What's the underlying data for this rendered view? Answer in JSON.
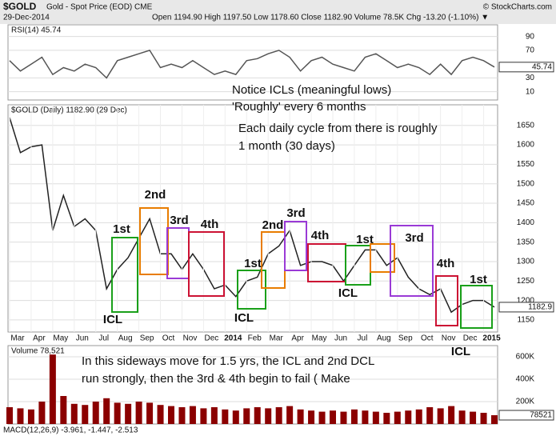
{
  "header": {
    "symbol": "$GOLD",
    "name": "Gold - Spot Price (EOD) CME",
    "source": "© StockCharts.com",
    "date": "29-Dec-2014",
    "stats": "Open 1194.90 High 1197.50 Low 1178.60 Close 1182.90 Volume 78.5K Chg -13.20 (-1.10%) ▼"
  },
  "chart_data": [
    {
      "type": "line",
      "title": "RSI(14) 45.74",
      "color": "#555555",
      "ylim": [
        -2,
        107
      ],
      "yticks": [
        10,
        30,
        70,
        90
      ],
      "grid": true,
      "values": [
        55,
        40,
        50,
        60,
        35,
        45,
        40,
        50,
        45,
        30,
        55,
        60,
        65,
        70,
        45,
        50,
        45,
        55,
        45,
        35,
        40,
        35,
        55,
        58,
        65,
        70,
        60,
        40,
        55,
        60,
        50,
        45,
        40,
        60,
        65,
        55,
        45,
        50,
        45,
        35,
        50,
        35,
        55,
        60,
        55,
        45.74
      ]
    },
    {
      "type": "line",
      "title": "$GOLD (Daily) 1182.90 (29 Dec)",
      "color": "#222222",
      "ylim": [
        1119,
        1703
      ],
      "grid": true,
      "yticks": [
        1150,
        1200,
        1250,
        1300,
        1350,
        1400,
        1450,
        1500,
        1550,
        1600,
        1650
      ],
      "categories": [
        "Mar",
        null,
        "Apr",
        null,
        "May",
        null,
        "Jun",
        null,
        "Jul",
        null,
        "Aug",
        null,
        "Sep",
        null,
        "Oct",
        null,
        "Nov",
        null,
        "Dec",
        null,
        "2014",
        null,
        "Feb",
        null,
        "Mar",
        null,
        "Apr",
        null,
        "May",
        null,
        "Jun",
        null,
        "Jul",
        null,
        "Aug",
        null,
        "Sep",
        null,
        "Oct",
        null,
        "Nov",
        null,
        "Dec",
        null,
        "2015",
        null
      ],
      "values": [
        1670,
        1580,
        1595,
        1600,
        1380,
        1470,
        1390,
        1410,
        1380,
        1230,
        1280,
        1310,
        1360,
        1410,
        1320,
        1320,
        1280,
        1320,
        1280,
        1230,
        1240,
        1210,
        1250,
        1260,
        1320,
        1340,
        1380,
        1290,
        1300,
        1300,
        1290,
        1250,
        1290,
        1330,
        1330,
        1290,
        1310,
        1260,
        1230,
        1215,
        1230,
        1170,
        1190,
        1200,
        1200,
        1182.9
      ]
    },
    {
      "type": "bar",
      "title": "Volume 78,521",
      "color": "#8b0000",
      "ylim": [
        0,
        700000
      ],
      "grid": true,
      "yticks": [
        {
          "value": 200000,
          "label": "200K"
        },
        {
          "value": 400000,
          "label": "400K"
        },
        {
          "value": 600000,
          "label": "600K"
        }
      ],
      "values": [
        150000,
        140000,
        130000,
        200000,
        620000,
        250000,
        180000,
        170000,
        200000,
        230000,
        190000,
        180000,
        200000,
        190000,
        170000,
        160000,
        150000,
        160000,
        140000,
        150000,
        130000,
        120000,
        140000,
        150000,
        140000,
        150000,
        160000,
        130000,
        120000,
        110000,
        120000,
        110000,
        130000,
        120000,
        110000,
        100000,
        110000,
        120000,
        130000,
        150000,
        140000,
        160000,
        120000,
        110000,
        100000,
        78521
      ]
    }
  ],
  "macd_label": "MACD(12,26,9) -3.961, -1.447, -2.513",
  "annotations": [
    {
      "text": "Notice ICLs  (meaningful lows)",
      "color": "#1a3fd6"
    },
    {
      "text": "'Roughly'  every 6 months",
      "color": "#1a3fd6"
    },
    {
      "text": "Each daily cycle from there is roughly",
      "color": "#e020c0"
    },
    {
      "text": "1 month   (30 days)",
      "color": "#e020c0"
    },
    {
      "text": "In this sideways move for 1.5 yrs,  the ICL and 2nd DCL",
      "color": "#1a3fd6"
    },
    {
      "text": "run strongly,  then the 3rd & 4th begin to fail ( Make",
      "color": "#1a3fd6"
    }
  ],
  "cycle_labels": [
    {
      "text": "1st",
      "color": "#d010d0"
    },
    {
      "text": "2nd",
      "color": "#e87c00"
    },
    {
      "text": "3rd",
      "color": "#9a3ad6"
    },
    {
      "text": "4th",
      "color": "#cc1133"
    },
    {
      "text": "1st",
      "color": "#d010d0"
    },
    {
      "text": "2nd",
      "color": "#e87c00"
    },
    {
      "text": "3rd",
      "color": "#9a3ad6"
    },
    {
      "text": "4th",
      "color": "#cc1133"
    },
    {
      "text": "1st",
      "color": "#d010d0"
    },
    {
      "text": "3rd",
      "color": "#9a3ad6"
    },
    {
      "text": "4th",
      "color": "#cc1133"
    },
    {
      "text": "1st",
      "color": "#d010d0"
    },
    {
      "text": "ICL",
      "color": "#1a3a9a"
    },
    {
      "text": "ICL",
      "color": "#1a3a9a"
    },
    {
      "text": "ICL",
      "color": "#1a3a9a"
    },
    {
      "text": "ICL",
      "color": "#1a3a9a"
    }
  ]
}
